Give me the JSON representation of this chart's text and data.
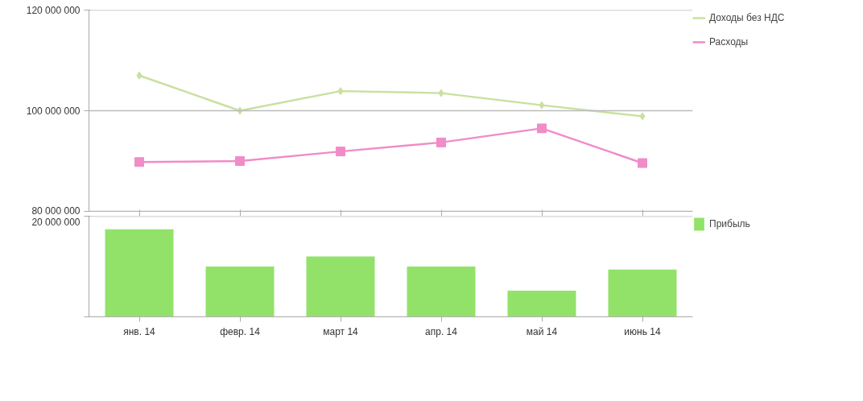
{
  "chart_data": [
    {
      "type": "line",
      "series": [
        {
          "name": "Доходы без НДС",
          "color": "#c9e0a0",
          "marker": "diamond",
          "values": [
            107000000,
            100000000,
            103900000,
            103500000,
            101100000,
            98900000
          ]
        },
        {
          "name": "Расходы",
          "color": "#f08cc8",
          "marker": "square",
          "values": [
            89800000,
            90000000,
            91900000,
            93700000,
            96500000,
            89600000
          ]
        }
      ],
      "ylim": [
        80000000,
        120000000
      ],
      "yticks": [
        {
          "value": 80000000,
          "label": "80 000 000"
        },
        {
          "value": 100000000,
          "label": "100 000 000"
        },
        {
          "value": 120000000,
          "label": "120 000 000"
        }
      ],
      "grid": "y",
      "legend": "right",
      "tick_labels": "y"
    },
    {
      "type": "bar",
      "categories": [
        "янв. 14",
        "февр. 14",
        "март 14",
        "апр. 14",
        "май 14",
        "июнь 14"
      ],
      "series": [
        {
          "name": "Прибыль",
          "color": "#92e26a",
          "values": [
            17400000,
            10000000,
            12000000,
            10000000,
            5200000,
            9400000
          ]
        }
      ],
      "ylim": [
        0,
        20000000
      ],
      "yticks": [
        {
          "value": 0,
          "label": null
        },
        {
          "value": 20000000,
          "label": "20 000 000"
        }
      ],
      "grid": "y",
      "legend": "right"
    }
  ]
}
